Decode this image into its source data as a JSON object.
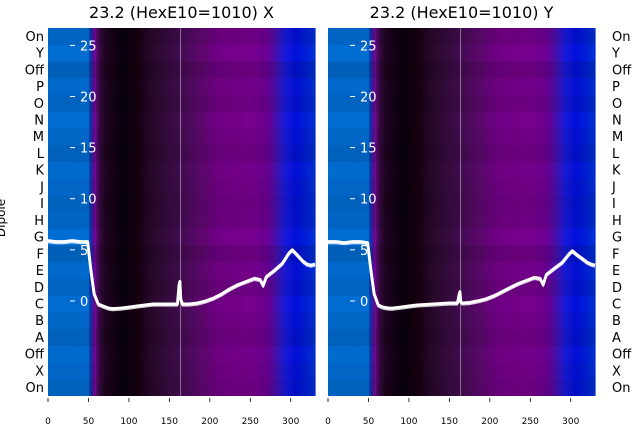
{
  "chart_data": [
    {
      "type": "heatmap",
      "title": "23.2 (HexE10=1010) X",
      "ylabel": "Dipole",
      "categories": [
        "On",
        "Y",
        "Off",
        "P",
        "O",
        "N",
        "M",
        "L",
        "K",
        "J",
        "I",
        "H",
        "G",
        "F",
        "E",
        "D",
        "C",
        "B",
        "A",
        "Off",
        "X",
        "On"
      ],
      "x_ticks": [
        0,
        50,
        100,
        150,
        200,
        250,
        300
      ],
      "y_ticks": [
        0,
        5,
        10,
        15,
        20,
        25
      ],
      "xlim": [
        0,
        330
      ],
      "ylim": [
        -9.3,
        26.7
      ],
      "marker_x": 164,
      "series": [
        {
          "values": [
            [
              0,
              5.9
            ],
            [
              10,
              5.8
            ],
            [
              20,
              5.8
            ],
            [
              30,
              5.9
            ],
            [
              40,
              5.8
            ],
            [
              49,
              5.8
            ],
            [
              53,
              3.0
            ],
            [
              57,
              0.7
            ],
            [
              62,
              -0.3
            ],
            [
              68,
              -0.5
            ],
            [
              75,
              -0.7
            ],
            [
              80,
              -0.75
            ],
            [
              90,
              -0.7
            ],
            [
              100,
              -0.6
            ],
            [
              110,
              -0.5
            ],
            [
              120,
              -0.4
            ],
            [
              130,
              -0.3
            ],
            [
              140,
              -0.3
            ],
            [
              150,
              -0.3
            ],
            [
              160,
              -0.3
            ],
            [
              162,
              1.6
            ],
            [
              163,
              1.9
            ],
            [
              164,
              0.2
            ],
            [
              166,
              -0.3
            ],
            [
              175,
              -0.3
            ],
            [
              185,
              -0.2
            ],
            [
              195,
              0
            ],
            [
              205,
              0.3
            ],
            [
              215,
              0.7
            ],
            [
              225,
              1.2
            ],
            [
              235,
              1.6
            ],
            [
              245,
              1.9
            ],
            [
              255,
              2.2
            ],
            [
              262,
              2.1
            ],
            [
              266,
              1.5
            ],
            [
              270,
              2.4
            ],
            [
              280,
              3.0
            ],
            [
              290,
              3.7
            ],
            [
              298,
              4.7
            ],
            [
              302,
              5.0
            ],
            [
              308,
              4.5
            ],
            [
              315,
              3.9
            ],
            [
              320,
              3.6
            ],
            [
              325,
              3.5
            ],
            [
              330,
              3.6
            ]
          ]
        }
      ]
    },
    {
      "type": "heatmap",
      "title": "23.2 (HexE10=1010) Y",
      "ylabel": "",
      "categories": [
        "On",
        "Y",
        "Off",
        "P",
        "O",
        "N",
        "M",
        "L",
        "K",
        "J",
        "I",
        "H",
        "G",
        "F",
        "E",
        "D",
        "C",
        "B",
        "A",
        "Off",
        "X",
        "On"
      ],
      "x_ticks": [
        0,
        50,
        100,
        150,
        200,
        250,
        300
      ],
      "y_ticks": [
        0,
        5,
        10,
        15,
        20,
        25
      ],
      "xlim": [
        0,
        330
      ],
      "ylim": [
        -9.3,
        26.7
      ],
      "marker_x": 164,
      "series": [
        {
          "values": [
            [
              0,
              5.8
            ],
            [
              10,
              5.8
            ],
            [
              20,
              5.7
            ],
            [
              30,
              5.8
            ],
            [
              40,
              5.8
            ],
            [
              49,
              5.7
            ],
            [
              53,
              3.0
            ],
            [
              57,
              0.7
            ],
            [
              62,
              -0.4
            ],
            [
              68,
              -0.6
            ],
            [
              75,
              -0.7
            ],
            [
              80,
              -0.7
            ],
            [
              90,
              -0.6
            ],
            [
              100,
              -0.5
            ],
            [
              110,
              -0.4
            ],
            [
              120,
              -0.35
            ],
            [
              130,
              -0.3
            ],
            [
              140,
              -0.25
            ],
            [
              150,
              -0.2
            ],
            [
              160,
              -0.2
            ],
            [
              162,
              0.6
            ],
            [
              163,
              0.9
            ],
            [
              164,
              -0.1
            ],
            [
              166,
              -0.2
            ],
            [
              175,
              -0.15
            ],
            [
              185,
              0
            ],
            [
              195,
              0.2
            ],
            [
              205,
              0.5
            ],
            [
              215,
              0.9
            ],
            [
              225,
              1.3
            ],
            [
              235,
              1.7
            ],
            [
              245,
              2.0
            ],
            [
              255,
              2.3
            ],
            [
              262,
              2.2
            ],
            [
              266,
              1.6
            ],
            [
              270,
              2.6
            ],
            [
              280,
              3.2
            ],
            [
              290,
              3.8
            ],
            [
              298,
              4.6
            ],
            [
              302,
              4.9
            ],
            [
              308,
              4.5
            ],
            [
              315,
              4.1
            ],
            [
              320,
              3.8
            ],
            [
              325,
              3.6
            ],
            [
              330,
              3.5
            ]
          ]
        }
      ]
    }
  ]
}
